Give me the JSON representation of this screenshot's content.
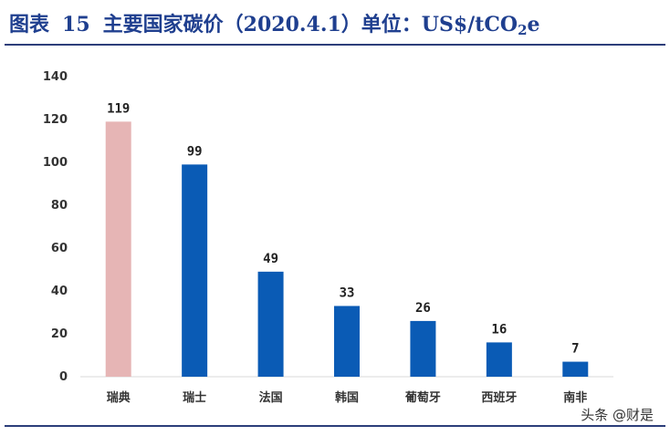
{
  "figure": {
    "label": "图表",
    "number": "15",
    "title_main": "主要国家碳价（2020.4.1）单位：US$/tCO",
    "title_sub": "2",
    "title_tail": "e"
  },
  "watermark": "头条 @财是",
  "colors": {
    "title": "#1f3f8f",
    "rule": "#2c3e7a",
    "bar_primary": "#0a5bb5",
    "bar_highlight": "#e6b5b5",
    "axis": "#d9d9d9"
  },
  "chart_data": {
    "type": "bar",
    "title": "主要国家碳价（2020.4.1）单位：US$/tCO2e",
    "xlabel": "",
    "ylabel": "",
    "categories": [
      "瑞典",
      "瑞士",
      "法国",
      "韩国",
      "葡萄牙",
      "西班牙",
      "南非"
    ],
    "values": [
      119,
      99,
      49,
      33,
      26,
      16,
      7
    ],
    "data_labels": [
      "119",
      "99",
      "49",
      "33",
      "26",
      "16",
      "7"
    ],
    "highlight_index": 0,
    "ylim": [
      0,
      140
    ],
    "yticks": [
      0,
      20,
      40,
      60,
      80,
      100,
      120,
      140
    ],
    "ytick_labels": [
      "0",
      "20",
      "40",
      "60",
      "80",
      "100",
      "120",
      "140"
    ],
    "grid": false,
    "legend": "none"
  }
}
